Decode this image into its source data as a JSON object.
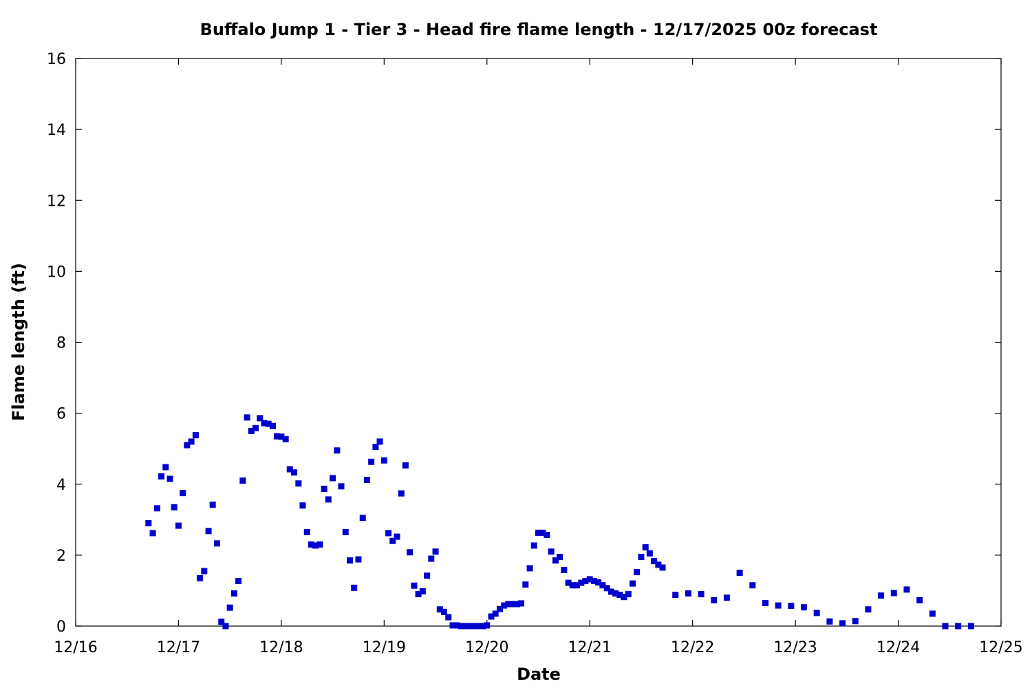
{
  "chart_data": {
    "type": "scatter",
    "title": "Buffalo Jump 1 - Tier 3 - Head fire flame length - 12/17/2025 00z forecast",
    "xlabel": "Date",
    "ylabel": "Flame length (ft)",
    "x_unit": "days since 12/16",
    "xlim": [
      0,
      9
    ],
    "ylim": [
      0,
      16
    ],
    "x_ticks": [
      {
        "value": 0,
        "label": "12/16"
      },
      {
        "value": 1,
        "label": "12/17"
      },
      {
        "value": 2,
        "label": "12/18"
      },
      {
        "value": 3,
        "label": "12/19"
      },
      {
        "value": 4,
        "label": "12/20"
      },
      {
        "value": 5,
        "label": "12/21"
      },
      {
        "value": 6,
        "label": "12/22"
      },
      {
        "value": 7,
        "label": "12/23"
      },
      {
        "value": 8,
        "label": "12/24"
      },
      {
        "value": 9,
        "label": "12/25"
      }
    ],
    "y_ticks": [
      {
        "value": 0,
        "label": "0"
      },
      {
        "value": 2,
        "label": "2"
      },
      {
        "value": 4,
        "label": "4"
      },
      {
        "value": 6,
        "label": "6"
      },
      {
        "value": 8,
        "label": "8"
      },
      {
        "value": 10,
        "label": "10"
      },
      {
        "value": 12,
        "label": "12"
      },
      {
        "value": 14,
        "label": "14"
      },
      {
        "value": 16,
        "label": "16"
      }
    ],
    "grid": false,
    "marker_color": "#0000cc",
    "series": [
      {
        "x": [
          0.708,
          0.75,
          0.792,
          0.833,
          0.875,
          0.917,
          0.958,
          1.0,
          1.042,
          1.083,
          1.125,
          1.167,
          1.208,
          1.25,
          1.292,
          1.333,
          1.375,
          1.417,
          1.458,
          1.5,
          1.542,
          1.583,
          1.625,
          1.667,
          1.708,
          1.75,
          1.792,
          1.833,
          1.875,
          1.917,
          1.958,
          2.0,
          2.042,
          2.083,
          2.125,
          2.167,
          2.208,
          2.25,
          2.292,
          2.333,
          2.375,
          2.417,
          2.458,
          2.5,
          2.542,
          2.583,
          2.625,
          2.667,
          2.708,
          2.75,
          2.792,
          2.833,
          2.875,
          2.917,
          2.958,
          3.0,
          3.042,
          3.083,
          3.125,
          3.167,
          3.208,
          3.25,
          3.292,
          3.333,
          3.375,
          3.417,
          3.458,
          3.5,
          3.542,
          3.583,
          3.625,
          3.667,
          3.708,
          3.75,
          3.792,
          3.833,
          3.875,
          3.917,
          3.958,
          4.0,
          4.042,
          4.083,
          4.125,
          4.167,
          4.208,
          4.25,
          4.292,
          4.333,
          4.375,
          4.417,
          4.458,
          4.5,
          4.542,
          4.583,
          4.625,
          4.667,
          4.708,
          4.75,
          4.792,
          4.833,
          4.875,
          4.917,
          4.958,
          5.0,
          5.042,
          5.083,
          5.125,
          5.167,
          5.208,
          5.25,
          5.292,
          5.333,
          5.375,
          5.417,
          5.458,
          5.5,
          5.542,
          5.583,
          5.625,
          5.667,
          5.708,
          5.833,
          5.958,
          6.083,
          6.208,
          6.333,
          6.458,
          6.583,
          6.708,
          6.833,
          6.958,
          7.083,
          7.208,
          7.333,
          7.458,
          7.583,
          7.708,
          7.833,
          7.958,
          8.083,
          8.208,
          8.333,
          8.458,
          8.583,
          8.708
        ],
        "y": [
          2.9,
          2.62,
          3.32,
          4.22,
          4.48,
          4.15,
          3.35,
          2.83,
          3.75,
          5.1,
          5.2,
          5.38,
          1.35,
          1.55,
          2.68,
          3.42,
          2.33,
          0.12,
          0.0,
          0.52,
          0.92,
          1.27,
          4.1,
          5.88,
          5.5,
          5.58,
          5.86,
          5.72,
          5.7,
          5.64,
          5.35,
          5.34,
          5.27,
          4.42,
          4.33,
          4.02,
          3.4,
          2.65,
          2.3,
          2.27,
          2.3,
          3.87,
          3.57,
          4.17,
          4.95,
          3.94,
          2.65,
          1.85,
          1.08,
          1.88,
          3.05,
          4.12,
          4.63,
          5.05,
          5.2,
          4.67,
          2.62,
          2.4,
          2.52,
          3.74,
          4.53,
          2.08,
          1.14,
          0.9,
          0.98,
          1.42,
          1.9,
          2.1,
          0.47,
          0.4,
          0.25,
          0.02,
          0.02,
          0.0,
          0.0,
          0.0,
          0.0,
          0.0,
          0.0,
          0.02,
          0.27,
          0.35,
          0.48,
          0.58,
          0.62,
          0.62,
          0.62,
          0.64,
          1.17,
          1.63,
          2.27,
          2.63,
          2.63,
          2.57,
          2.1,
          1.85,
          1.95,
          1.58,
          1.22,
          1.15,
          1.15,
          1.22,
          1.27,
          1.32,
          1.27,
          1.23,
          1.15,
          1.07,
          0.97,
          0.92,
          0.88,
          0.82,
          0.9,
          1.2,
          1.52,
          1.95,
          2.22,
          2.05,
          1.83,
          1.73,
          1.65,
          0.88,
          0.92,
          0.9,
          0.73,
          0.8,
          1.5,
          1.15,
          0.65,
          0.58,
          0.57,
          0.53,
          0.37,
          0.13,
          0.08,
          0.14,
          0.47,
          0.86,
          0.93,
          1.03,
          0.73,
          0.35,
          0.0,
          0.0,
          0.0
        ]
      }
    ]
  }
}
